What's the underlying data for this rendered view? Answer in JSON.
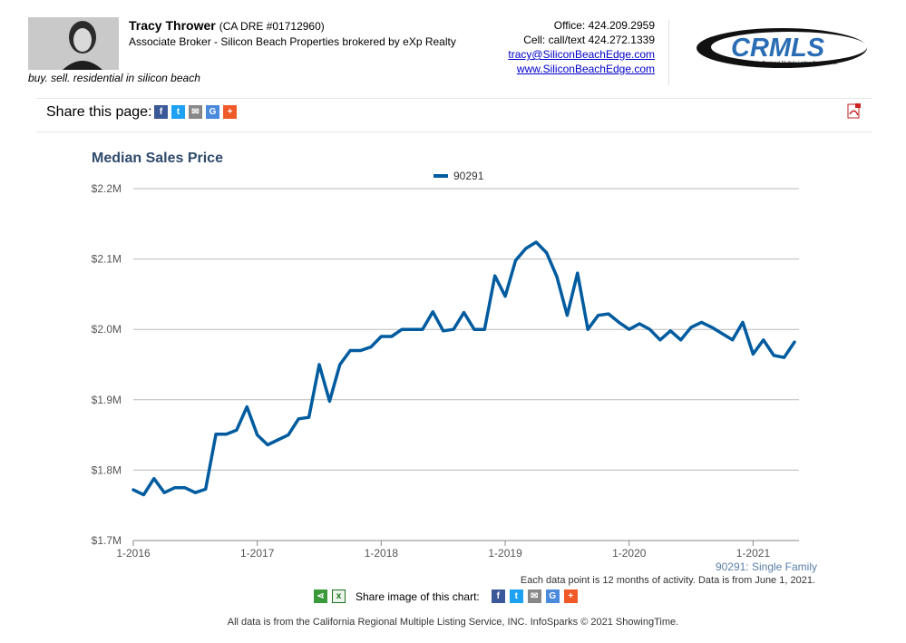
{
  "agent": {
    "name": "Tracy Thrower",
    "dre": "(CA DRE #01712960)",
    "role": "Associate Broker - Silicon Beach Properties brokered by eXp Realty",
    "tagline": "buy. sell. residential in silicon beach",
    "office": "Office: 424.209.2959",
    "cell": "Cell: call/text 424.272.1339",
    "email": "tracy@SiliconBeachEdge.com",
    "website": "www.SiliconBeachEdge.com"
  },
  "logo": {
    "text": "CRMLS",
    "subtext": "California Regional Multiple Listing Service, Inc."
  },
  "share": {
    "label": "Share this page:",
    "icons": [
      "facebook-icon",
      "twitter-icon",
      "email-icon",
      "google-icon",
      "plus-icon"
    ],
    "pdf_icon": "pdf-icon"
  },
  "colors": {
    "series": "#005b9f",
    "title": "#2e4a6b",
    "facebook": "#3b5998",
    "twitter": "#1da1f2",
    "email": "#888888",
    "google": "#4a89dc",
    "plus": "#f05a28",
    "grid": "#bbbbbb"
  },
  "chart_data": {
    "type": "line",
    "title": "Median Sales Price",
    "legend": [
      "90291"
    ],
    "legend_position": "top-center",
    "grid": true,
    "xlabel": "",
    "ylabel": "",
    "ylim": [
      1.7,
      2.2
    ],
    "y_tick_values": [
      1.7,
      1.8,
      1.9,
      2.0,
      2.1,
      2.2
    ],
    "y_tick_labels": [
      "$1.7M",
      "$1.8M",
      "$1.9M",
      "$2.0M",
      "$2.1M",
      "$2.2M"
    ],
    "x_tick_labels": [
      "1-2016",
      "1-2017",
      "1-2018",
      "1-2019",
      "1-2020",
      "1-2021"
    ],
    "x": [
      "2016-01",
      "2016-02",
      "2016-03",
      "2016-04",
      "2016-05",
      "2016-06",
      "2016-07",
      "2016-08",
      "2016-09",
      "2016-10",
      "2016-11",
      "2016-12",
      "2017-01",
      "2017-02",
      "2017-03",
      "2017-04",
      "2017-05",
      "2017-06",
      "2017-07",
      "2017-08",
      "2017-09",
      "2017-10",
      "2017-11",
      "2017-12",
      "2018-01",
      "2018-02",
      "2018-03",
      "2018-04",
      "2018-05",
      "2018-06",
      "2018-07",
      "2018-08",
      "2018-09",
      "2018-10",
      "2018-11",
      "2018-12",
      "2019-01",
      "2019-02",
      "2019-03",
      "2019-04",
      "2019-05",
      "2019-06",
      "2019-07",
      "2019-08",
      "2019-09",
      "2019-10",
      "2019-11",
      "2019-12",
      "2020-01",
      "2020-02",
      "2020-03",
      "2020-04",
      "2020-05",
      "2020-06",
      "2020-07",
      "2020-08",
      "2020-09",
      "2020-10",
      "2020-11",
      "2020-12",
      "2021-01",
      "2021-02",
      "2021-03",
      "2021-04",
      "2021-05"
    ],
    "series": [
      {
        "name": "90291",
        "values": [
          1.772,
          1.765,
          1.788,
          1.768,
          1.775,
          1.775,
          1.768,
          1.773,
          1.851,
          1.851,
          1.857,
          1.89,
          1.85,
          1.836,
          1.843,
          1.85,
          1.873,
          1.875,
          1.95,
          1.898,
          1.95,
          1.97,
          1.97,
          1.975,
          1.99,
          1.99,
          2.0,
          2.0,
          2.0,
          2.025,
          1.998,
          2.0,
          2.024,
          2.0,
          2.0,
          2.076,
          2.047,
          2.098,
          2.115,
          2.124,
          2.109,
          2.075,
          2.02,
          2.08,
          2.0,
          2.02,
          2.022,
          2.01,
          2.0,
          2.008,
          2.0,
          1.985,
          1.998,
          1.985,
          2.003,
          2.01,
          2.003,
          1.994,
          1.985,
          2.01,
          1.965,
          1.985,
          1.963,
          1.96,
          1.982
        ]
      }
    ]
  },
  "notes": {
    "series_caption": "90291: Single Family",
    "data_note": "Each data point is 12 months of activity. Data is from June 1, 2021.",
    "share_image_label": "Share image of this chart:",
    "footer": "All data is from the California Regional Multiple Listing Service, INC. InfoSparks © 2021 ShowingTime."
  }
}
